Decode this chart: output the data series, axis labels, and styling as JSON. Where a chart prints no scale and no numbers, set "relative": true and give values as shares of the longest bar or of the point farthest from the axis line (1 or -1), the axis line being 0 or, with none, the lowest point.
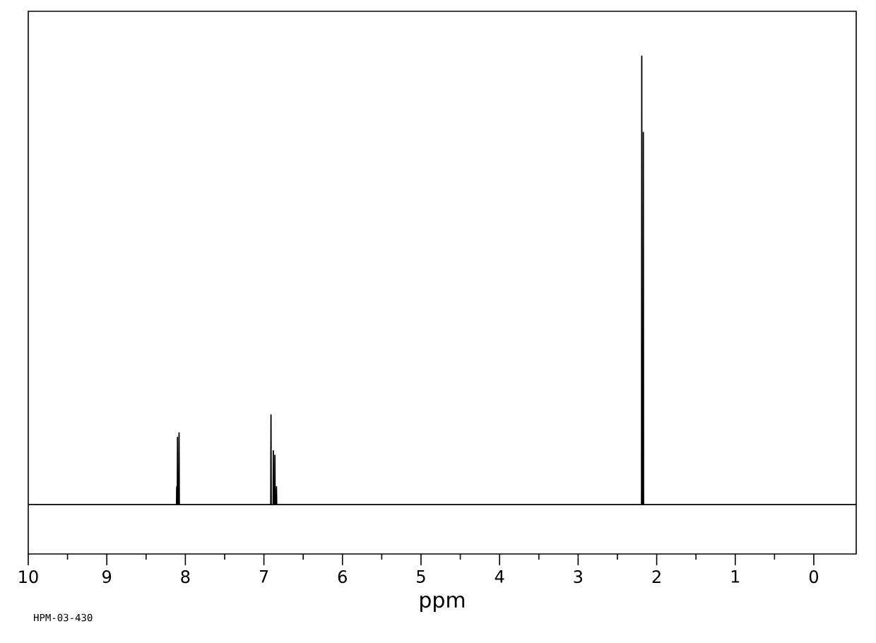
{
  "chart_data": {
    "type": "line",
    "relative": true,
    "xlabel": "ppm",
    "xlim": [
      10,
      -0.54
    ],
    "xticks": [
      10,
      9,
      8,
      7,
      6,
      5,
      4,
      3,
      2,
      1,
      0
    ],
    "series": [
      {
        "color": "#000000",
        "x": [
          10,
          8.113,
          8.11,
          8.107,
          8.103,
          8.1,
          8.097,
          8.083,
          8.08,
          8.077,
          6.913,
          6.91,
          6.907,
          6.883,
          6.88,
          6.877,
          6.863,
          6.86,
          6.857,
          6.843,
          6.84,
          6.837,
          2.193,
          2.19,
          2.187,
          2.173,
          2.17,
          2.167,
          -0.54
        ],
        "values": [
          0,
          0,
          0.04,
          0,
          0,
          0.15,
          0,
          0,
          0.16,
          0,
          0,
          0.2,
          0,
          0,
          0.12,
          0,
          0,
          0.11,
          0,
          0,
          0.04,
          0,
          0,
          1.0,
          0,
          0,
          0.83,
          0,
          0
        ]
      }
    ],
    "annotations": [
      "HPM-03-430"
    ]
  }
}
